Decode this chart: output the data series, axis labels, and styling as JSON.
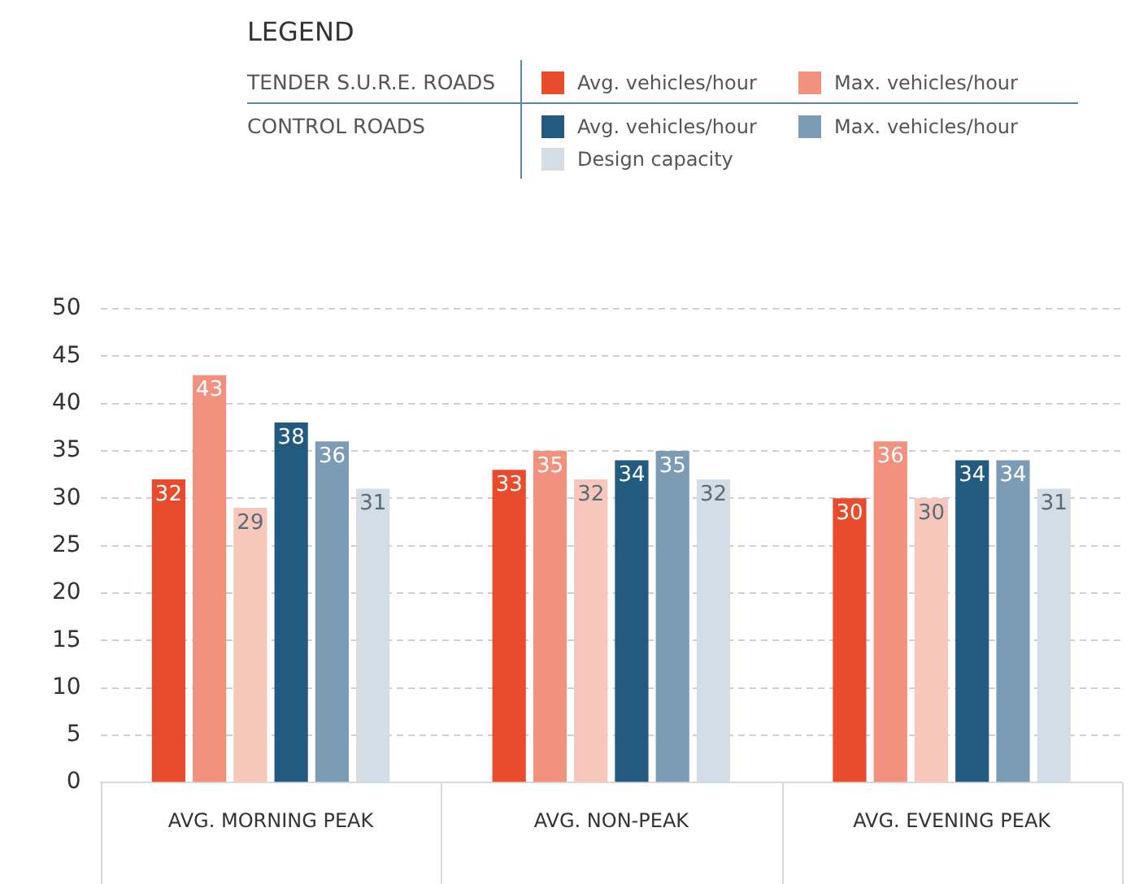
{
  "chart_data": {
    "type": "bar",
    "legend_title": "LEGEND",
    "annotations": [
      "TENDER S.U.R.E. ROADS",
      "CONTROL ROADS"
    ],
    "categories": [
      "AVG. MORNING PEAK",
      "AVG. NON-PEAK",
      "AVG. EVENING PEAK"
    ],
    "series": [
      {
        "name": "Avg. vehicles/hour",
        "color": "#e94b2d",
        "values": [
          32,
          33,
          30
        ]
      },
      {
        "name": "Max. vehicles/hour",
        "color": "#f2917d",
        "values": [
          43,
          35,
          36
        ]
      },
      {
        "color": "#f8c7bc",
        "values": [
          29,
          32,
          30
        ]
      },
      {
        "name": "Avg. vehicles/hour",
        "color": "#235a80",
        "values": [
          38,
          34,
          34
        ]
      },
      {
        "name": "Max. vehicles/hour",
        "color": "#7b9cb4",
        "values": [
          36,
          35,
          34
        ]
      },
      {
        "name": "Design capacity",
        "color": "#d3dde5",
        "values": [
          31,
          32,
          31
        ]
      }
    ],
    "ylim": [
      0,
      50
    ],
    "yticks": [
      0,
      5,
      10,
      15,
      20,
      25,
      30,
      35,
      40,
      45,
      50
    ],
    "grid": "y",
    "legend": "top",
    "data_labels": true
  }
}
